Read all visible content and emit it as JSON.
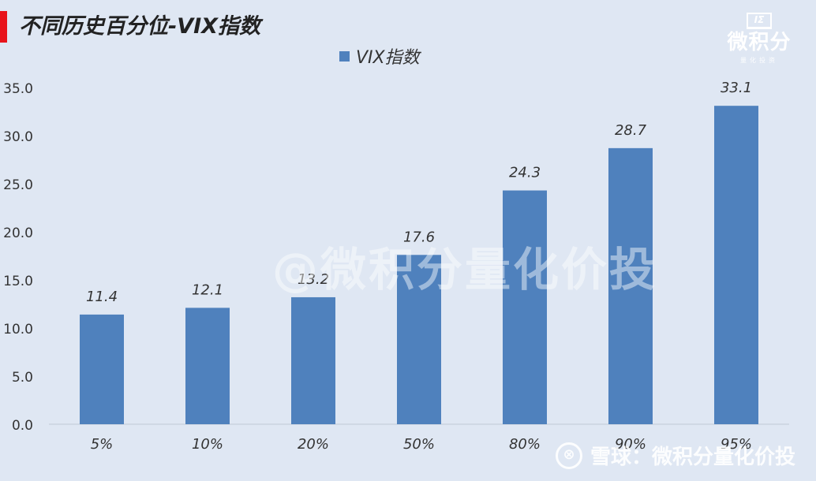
{
  "header": {
    "title": "不同历史百分位-VIX指数"
  },
  "logo": {
    "mark": "IΣ",
    "text": "微积分",
    "sub": "量化投资"
  },
  "watermark": "@微积分量化价投",
  "footer_watermark": {
    "icon": "snowball-icon",
    "text": "雪球：微积分量化价投"
  },
  "colors": {
    "bar": "#4f81bd",
    "background": "#dfe7f3",
    "title_accent": "#e8141b"
  },
  "chart_data": {
    "type": "bar",
    "title": "不同历史百分位-VIX指数",
    "xlabel": "",
    "ylabel": "",
    "categories": [
      "5%",
      "10%",
      "20%",
      "50%",
      "80%",
      "90%",
      "95%"
    ],
    "series": [
      {
        "name": "VIX指数",
        "values": [
          11.4,
          12.1,
          13.2,
          17.6,
          24.3,
          28.7,
          33.1
        ]
      }
    ],
    "data_labels": [
      "11.4",
      "12.1",
      "13.2",
      "17.6",
      "24.3",
      "28.7",
      "33.1"
    ],
    "yticks": [
      "0.0",
      "5.0",
      "10.0",
      "15.0",
      "20.0",
      "25.0",
      "30.0",
      "35.0"
    ],
    "ylim": [
      0,
      35
    ],
    "grid": false,
    "legend": "top-center"
  }
}
